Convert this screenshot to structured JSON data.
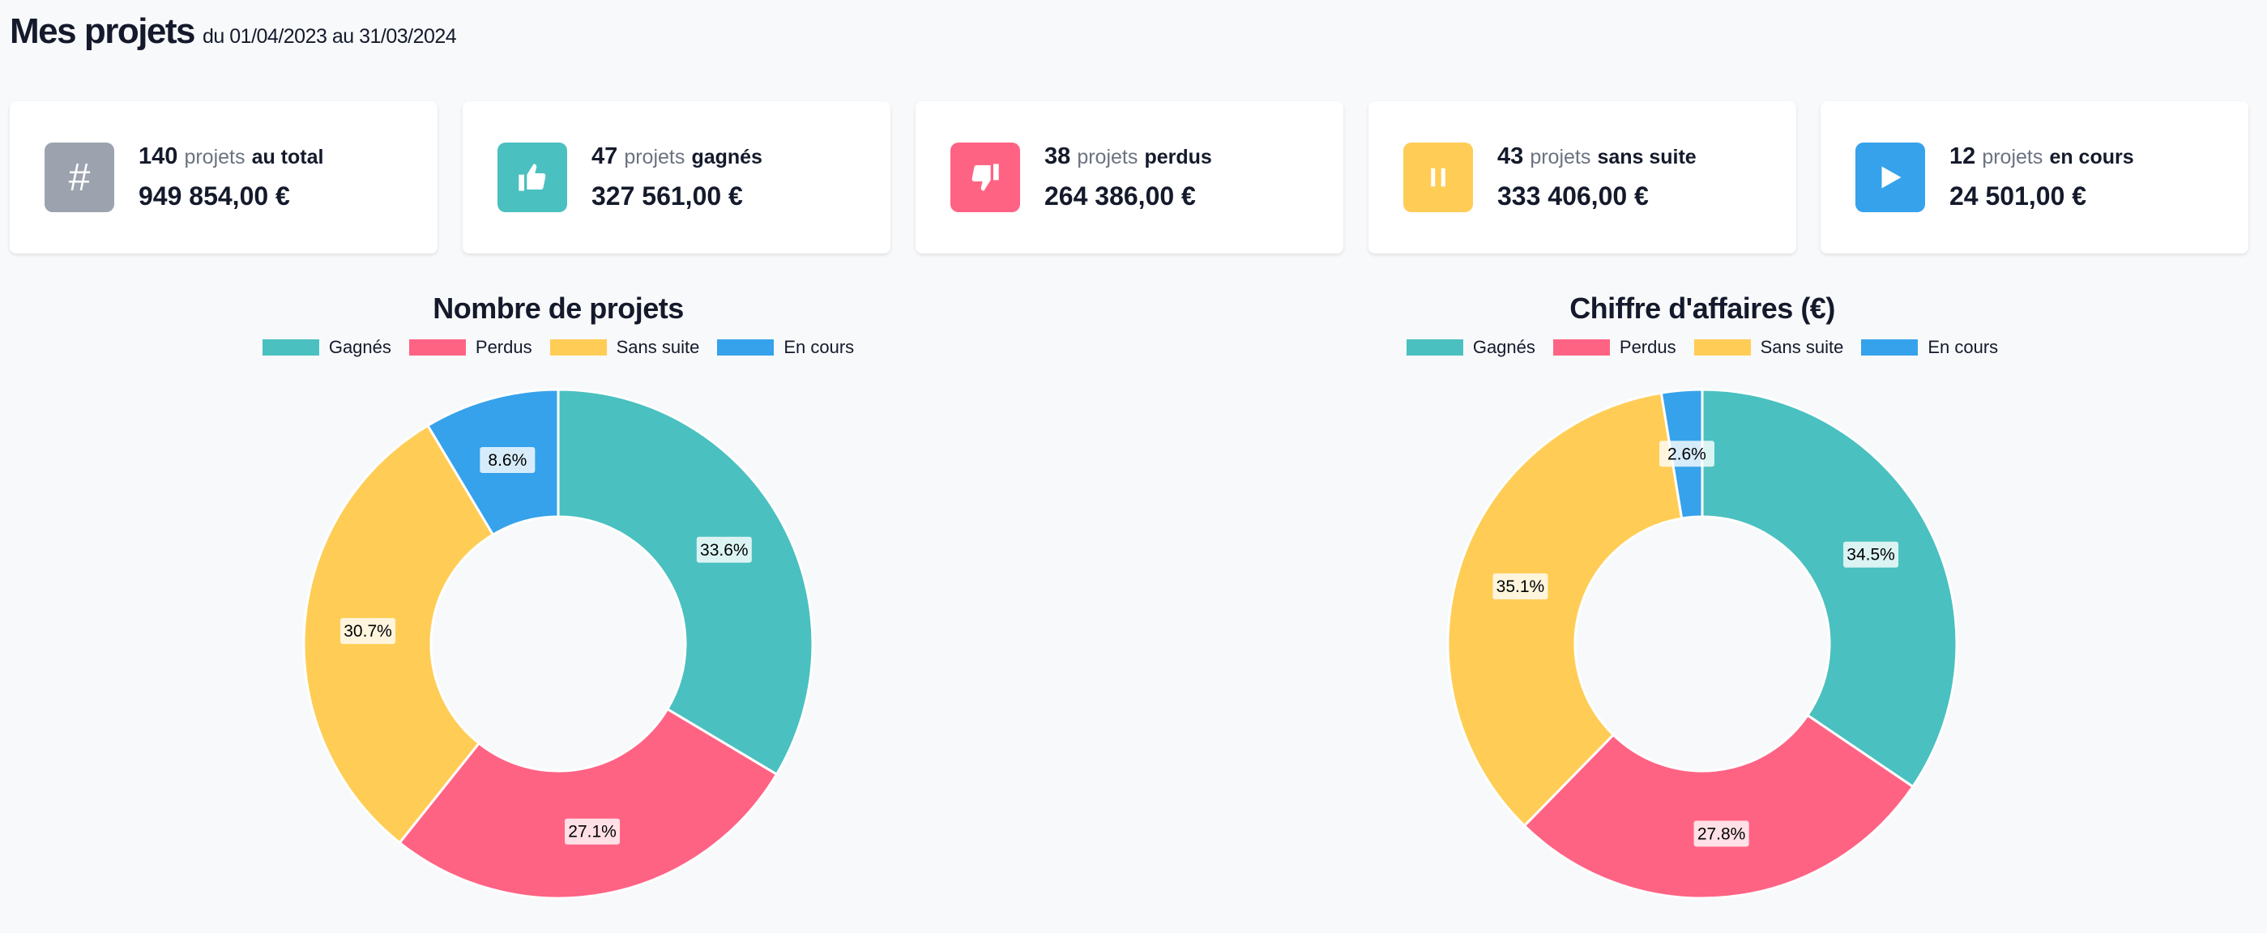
{
  "header": {
    "title": "Mes projets",
    "range": "du 01/04/2023 au 31/03/2024"
  },
  "cards": [
    {
      "icon": "hash-icon",
      "color": "#9ca3af",
      "count": "140",
      "word": "projets",
      "status": "au total",
      "amount": "949 854,00 €"
    },
    {
      "icon": "thumbs-up-icon",
      "color": "#4bc0c0",
      "count": "47",
      "word": "projets",
      "status": "gagnés",
      "amount": "327 561,00 €"
    },
    {
      "icon": "thumbs-down-icon",
      "color": "#ff6384",
      "count": "38",
      "word": "projets",
      "status": "perdus",
      "amount": "264 386,00 €"
    },
    {
      "icon": "pause-icon",
      "color": "#ffcd56",
      "count": "43",
      "word": "projets",
      "status": "sans suite",
      "amount": "333 406,00 €"
    },
    {
      "icon": "play-icon",
      "color": "#36a2eb",
      "count": "12",
      "word": "projets",
      "status": "en cours",
      "amount": "24 501,00 €"
    }
  ],
  "chart_data": [
    {
      "type": "pie",
      "title": "Nombre de projets",
      "categories": [
        "Gagnés",
        "Perdus",
        "Sans suite",
        "En cours"
      ],
      "values": [
        47,
        38,
        43,
        12
      ],
      "labels": [
        "33.6%",
        "27.1%",
        "30.7%",
        "8.6%"
      ],
      "colors": [
        "#4bc0c0",
        "#ff6384",
        "#ffcd56",
        "#36a2eb"
      ],
      "legend": "top"
    },
    {
      "type": "pie",
      "title": "Chiffre d'affaires (€)",
      "categories": [
        "Gagnés",
        "Perdus",
        "Sans suite",
        "En cours"
      ],
      "values": [
        327561,
        264386,
        333406,
        24501
      ],
      "labels": [
        "34.5%",
        "27.8%",
        "35.1%",
        "2.6%"
      ],
      "colors": [
        "#4bc0c0",
        "#ff6384",
        "#ffcd56",
        "#36a2eb"
      ],
      "legend": "top"
    }
  ]
}
